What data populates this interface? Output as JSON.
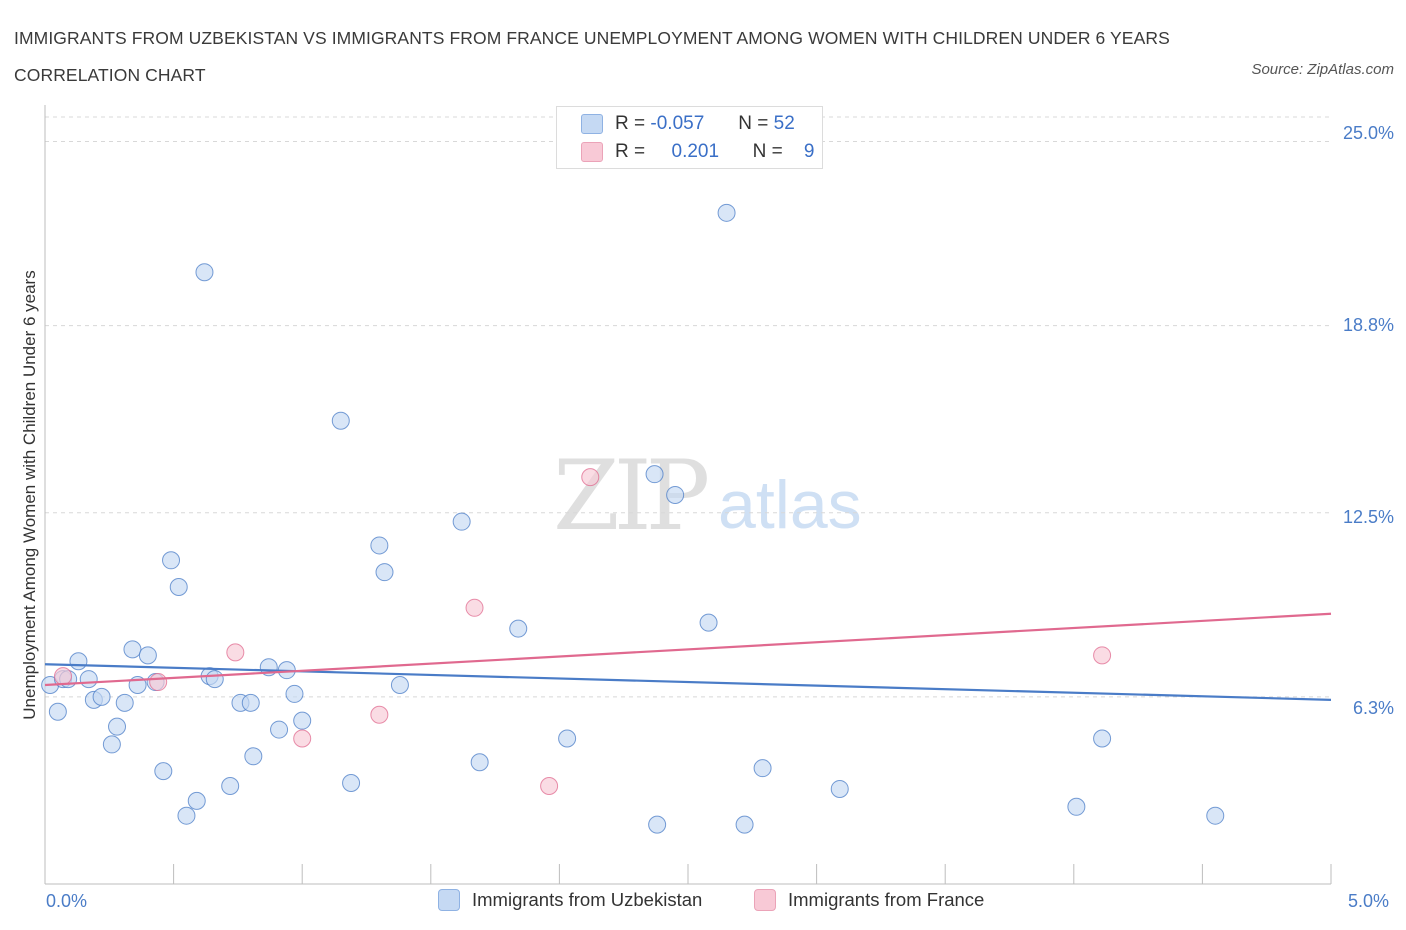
{
  "title": "IMMIGRANTS FROM UZBEKISTAN VS IMMIGRANTS FROM FRANCE UNEMPLOYMENT AMONG WOMEN WITH CHILDREN UNDER 6 YEARS CORRELATION CHART",
  "source": "Source: ZipAtlas.com",
  "watermark": {
    "zip": "ZIP",
    "atlas": "atlas"
  },
  "legend": {
    "rows": [
      {
        "r_label": "R =",
        "r_value": "-0.057",
        "n_label": "N =",
        "n_value": "52",
        "color": "#aac8f0"
      },
      {
        "r_label": "R =",
        "r_value": "0.201",
        "n_label": "N =",
        "n_value": "9",
        "color": "#f5b8c8"
      }
    ]
  },
  "chart_data": {
    "type": "scatter",
    "title": "IMMIGRANTS FROM UZBEKISTAN VS IMMIGRANTS FROM FRANCE UNEMPLOYMENT AMONG WOMEN WITH CHILDREN UNDER 6 YEARS CORRELATION CHART",
    "xlabel": "",
    "ylabel": "Unemployment Among Women with Children Under 6 years",
    "xlim": [
      0,
      5
    ],
    "ylim": [
      0,
      25
    ],
    "x_tick_labels": [
      "0.0%",
      "5.0%"
    ],
    "y_ticks": [
      6.3,
      12.5,
      18.8,
      25.0
    ],
    "y_tick_labels": [
      "6.3%",
      "12.5%",
      "18.8%",
      "25.0%"
    ],
    "grid": true,
    "series": [
      {
        "name": "Immigrants from Uzbekistan",
        "color": "#4a7cc7",
        "fill": "#c5d9f3",
        "trend": {
          "x": [
            0,
            5
          ],
          "y": [
            7.4,
            6.2
          ]
        },
        "points": [
          [
            0.02,
            6.7
          ],
          [
            0.05,
            5.8
          ],
          [
            0.07,
            6.9
          ],
          [
            0.09,
            6.9
          ],
          [
            0.13,
            7.5
          ],
          [
            0.17,
            6.9
          ],
          [
            0.19,
            6.2
          ],
          [
            0.22,
            6.3
          ],
          [
            0.26,
            4.7
          ],
          [
            0.28,
            5.3
          ],
          [
            0.31,
            6.1
          ],
          [
            0.34,
            7.9
          ],
          [
            0.36,
            6.7
          ],
          [
            0.4,
            7.7
          ],
          [
            0.43,
            6.8
          ],
          [
            0.46,
            3.8
          ],
          [
            0.49,
            10.9
          ],
          [
            0.52,
            10.0
          ],
          [
            0.55,
            2.3
          ],
          [
            0.59,
            2.8
          ],
          [
            0.62,
            20.6
          ],
          [
            0.64,
            7.0
          ],
          [
            0.66,
            6.9
          ],
          [
            0.72,
            3.3
          ],
          [
            0.76,
            6.1
          ],
          [
            0.8,
            6.1
          ],
          [
            0.81,
            4.3
          ],
          [
            0.87,
            7.3
          ],
          [
            0.91,
            5.2
          ],
          [
            0.94,
            7.2
          ],
          [
            0.97,
            6.4
          ],
          [
            1.0,
            5.5
          ],
          [
            1.15,
            15.6
          ],
          [
            1.19,
            3.4
          ],
          [
            1.3,
            11.4
          ],
          [
            1.32,
            10.5
          ],
          [
            1.38,
            6.7
          ],
          [
            1.62,
            12.2
          ],
          [
            1.69,
            4.1
          ],
          [
            1.84,
            8.6
          ],
          [
            2.03,
            4.9
          ],
          [
            2.37,
            13.8
          ],
          [
            2.38,
            2.0
          ],
          [
            2.45,
            13.1
          ],
          [
            2.58,
            8.8
          ],
          [
            2.65,
            22.6
          ],
          [
            2.72,
            2.0
          ],
          [
            2.79,
            3.9
          ],
          [
            3.09,
            3.2
          ],
          [
            4.01,
            2.6
          ],
          [
            4.11,
            4.9
          ],
          [
            4.55,
            2.3
          ]
        ]
      },
      {
        "name": "Immigrants from France",
        "color": "#e0698f",
        "fill": "#f8c9d6",
        "trend": {
          "x": [
            0,
            5
          ],
          "y": [
            6.7,
            9.1
          ]
        },
        "points": [
          [
            0.07,
            7.0
          ],
          [
            0.44,
            6.8
          ],
          [
            0.74,
            7.8
          ],
          [
            1.0,
            4.9
          ],
          [
            1.3,
            5.7
          ],
          [
            1.67,
            9.3
          ],
          [
            1.96,
            3.3
          ],
          [
            2.12,
            13.7
          ],
          [
            4.11,
            7.7
          ]
        ]
      }
    ]
  },
  "bottom_legend": [
    {
      "label": "Immigrants from Uzbekistan",
      "color": "#aac8f0"
    },
    {
      "label": "Immigrants from France",
      "color": "#f5b8c8"
    }
  ]
}
